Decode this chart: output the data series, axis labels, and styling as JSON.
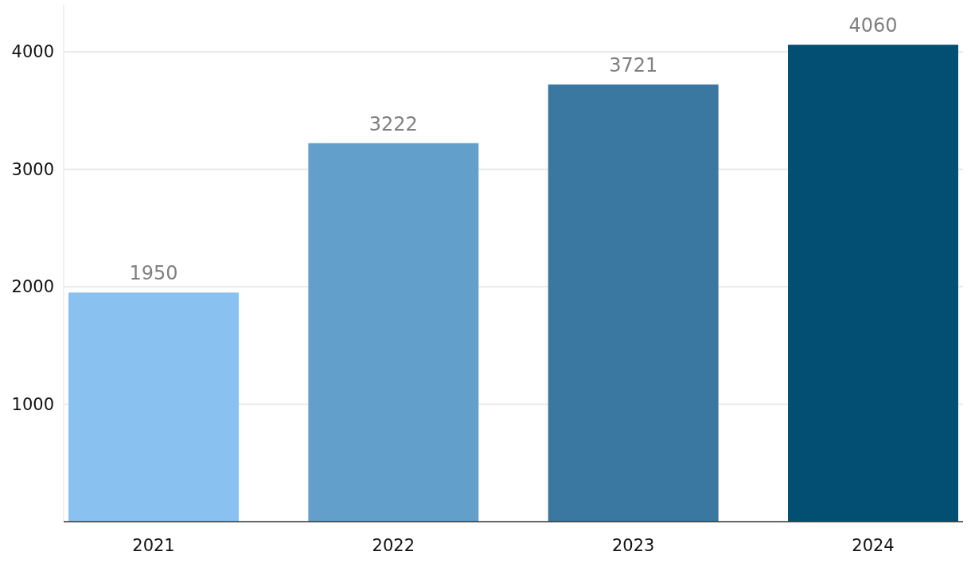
{
  "chart_data": {
    "type": "bar",
    "categories": [
      "2021",
      "2022",
      "2023",
      "2024"
    ],
    "values": [
      1950,
      3222,
      3721,
      4060
    ],
    "colors": [
      "#89c2f0",
      "#629fcb",
      "#3a77a1",
      "#024f73"
    ],
    "ylim": [
      0,
      4400
    ],
    "yticks": [
      1000,
      2000,
      3000,
      4000
    ],
    "grid": "y",
    "data_labels": true
  }
}
